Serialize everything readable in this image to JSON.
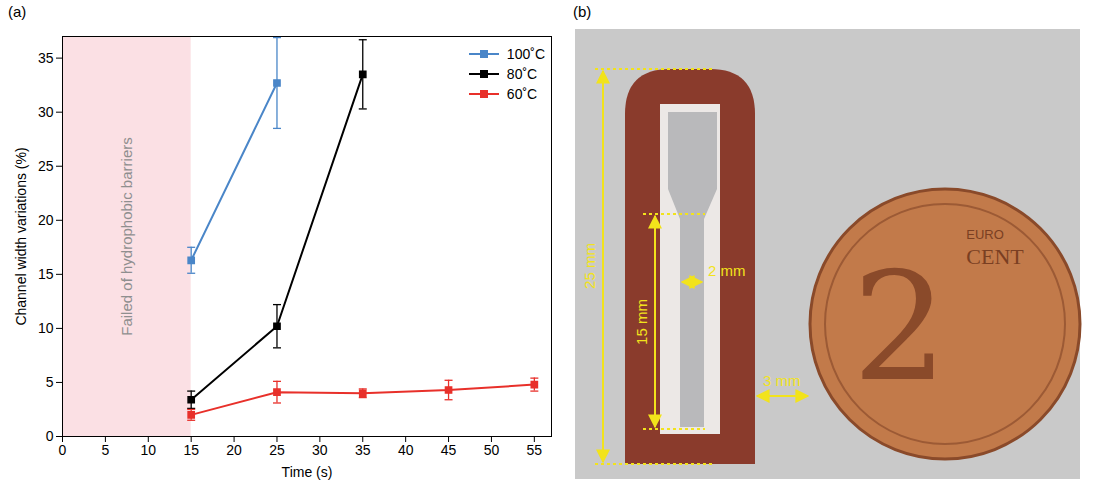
{
  "chart_data": {
    "type": "line",
    "panel": "(a)",
    "x_label": "Time (s)",
    "y_label": "Channel width variations (%)",
    "xlim": [
      0,
      57
    ],
    "xticks": [
      0,
      5,
      10,
      15,
      20,
      25,
      30,
      35,
      40,
      45,
      50,
      55
    ],
    "ylim": [
      0,
      37
    ],
    "yticks": [
      0,
      5,
      10,
      15,
      20,
      25,
      30,
      35
    ],
    "legend": "upper right",
    "marker": "square",
    "annotations": [
      {
        "text": "Failed of hydrophobic barriers",
        "x_range": [
          0,
          15
        ]
      }
    ],
    "series": [
      {
        "name": "100˚C",
        "color": "#4a86c8",
        "x": [
          15,
          25
        ],
        "values": [
          16.3,
          32.7
        ],
        "errors": [
          1.2,
          4.2
        ]
      },
      {
        "name": "80˚C",
        "color": "#000000",
        "x": [
          15,
          25,
          35
        ],
        "values": [
          3.4,
          10.2,
          33.5
        ],
        "errors": [
          0.8,
          2.0,
          3.2
        ]
      },
      {
        "name": "60˚C",
        "color": "#e8302a",
        "x": [
          15,
          25,
          35,
          45,
          55
        ],
        "values": [
          2.0,
          4.1,
          4.0,
          4.3,
          4.8
        ],
        "errors": [
          0.5,
          1.0,
          0.4,
          0.9,
          0.6
        ]
      }
    ]
  },
  "panel_b": {
    "panel": "(b)",
    "dimensions": [
      "25 mm",
      "15 mm",
      "2 mm",
      "3 mm"
    ],
    "coin": {
      "numeral": "2",
      "words": [
        "EURO",
        "CENT"
      ]
    }
  }
}
